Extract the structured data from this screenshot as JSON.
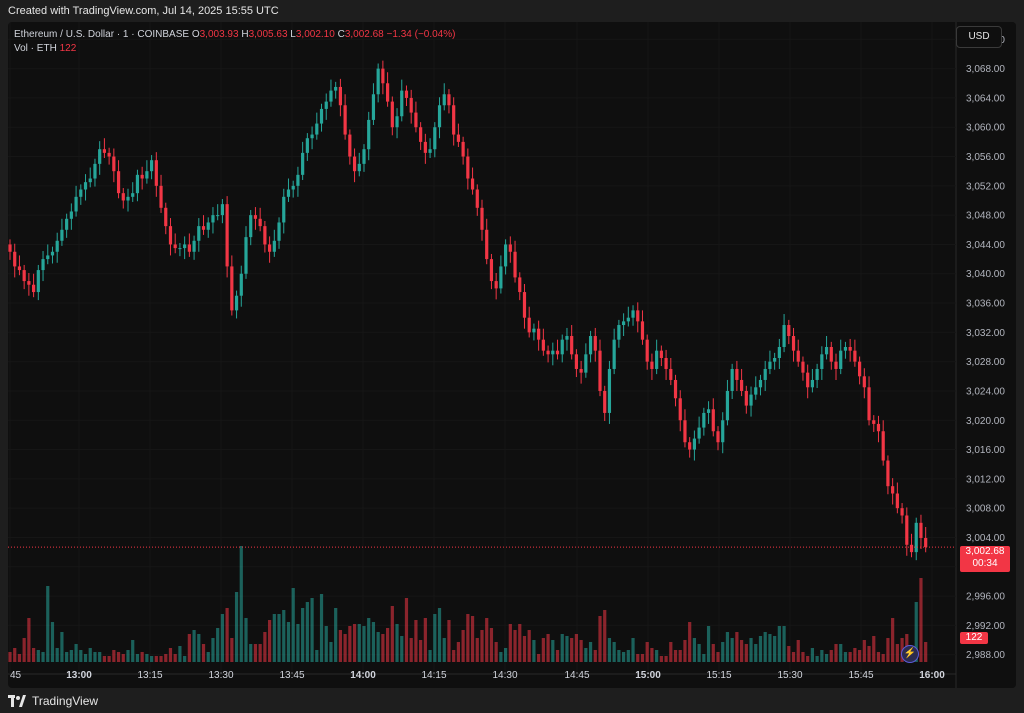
{
  "header": {
    "text": "Created with TradingView.com, Jul 14, 2025 15:55 UTC"
  },
  "legend": {
    "symbol": "Ethereum / U.S. Dollar · 1 · COINBASE",
    "o_label": "O",
    "o_value": "3,003.93",
    "h_label": "H",
    "h_value": "3,005.63",
    "l_label": "L",
    "l_value": "3,002.10",
    "c_label": "C",
    "c_value": "3,002.68",
    "change": "−1.34 (−0.04%)",
    "vol_label": "Vol · ETH",
    "vol_value": "122"
  },
  "currency_button": "USD",
  "last_price": {
    "value": "3,002.68",
    "countdown": "00:34"
  },
  "last_volume": "122",
  "footer": {
    "brand": "TradingView"
  },
  "colors": {
    "up": "#26a69a",
    "down": "#f23645",
    "background": "#0f0f0f"
  },
  "chart_data": {
    "type": "candlestick",
    "interval": "1 minute",
    "x_ticks": [
      "45",
      "13:00",
      "13:15",
      "13:30",
      "13:45",
      "14:00",
      "14:15",
      "14:30",
      "14:45",
      "15:00",
      "15:15",
      "15:30",
      "15:45",
      "16:00"
    ],
    "y_ticks": [
      "3,072.00",
      "3,068.00",
      "3,064.00",
      "3,060.00",
      "3,056.00",
      "3,052.00",
      "3,048.00",
      "3,044.00",
      "3,040.00",
      "3,036.00",
      "3,032.00",
      "3,028.00",
      "3,024.00",
      "3,020.00",
      "3,016.00",
      "3,012.00",
      "3,008.00",
      "3,004.00",
      "3,000.00",
      "2,996.00",
      "2,992.00",
      "2,988.00"
    ],
    "ylim": [
      2987,
      3073
    ],
    "close_path": [
      3043.0,
      3041.0,
      3040.5,
      3039.0,
      3038.5,
      3037.5,
      3040.5,
      3042.0,
      3042.5,
      3043.0,
      3044.5,
      3046.0,
      3047.5,
      3048.5,
      3050.5,
      3051.5,
      3052.5,
      3053.0,
      3055.0,
      3057.0,
      3056.5,
      3056.0,
      3054.0,
      3051.0,
      3050.0,
      3050.5,
      3051.0,
      3053.5,
      3053.0,
      3054.0,
      3055.5,
      3052.0,
      3049.0,
      3046.5,
      3044.0,
      3043.5,
      3043.5,
      3044.0,
      3043.0,
      3044.5,
      3046.5,
      3046.0,
      3047.0,
      3048.0,
      3048.0,
      3049.5,
      3041.0,
      3035.0,
      3037.0,
      3040.0,
      3045.0,
      3048.0,
      3047.5,
      3046.5,
      3044.0,
      3043.0,
      3044.5,
      3047.0,
      3050.5,
      3051.5,
      3052.0,
      3053.5,
      3056.5,
      3058.5,
      3059.0,
      3060.5,
      3062.5,
      3063.5,
      3065.0,
      3065.5,
      3063.0,
      3059.0,
      3056.0,
      3054.0,
      3055.0,
      3057.0,
      3061.0,
      3064.5,
      3068.0,
      3066.0,
      3063.5,
      3060.0,
      3061.5,
      3065.0,
      3064.0,
      3062.0,
      3060.0,
      3058.0,
      3056.5,
      3057.0,
      3060.0,
      3063.0,
      3064.5,
      3063.0,
      3059.0,
      3058.0,
      3056.0,
      3053.0,
      3051.5,
      3049.0,
      3046.0,
      3042.0,
      3039.0,
      3038.0,
      3041.0,
      3044.0,
      3043.0,
      3039.5,
      3037.5,
      3034.0,
      3032.0,
      3032.5,
      3031.0,
      3029.5,
      3029.0,
      3029.5,
      3029.0,
      3031.0,
      3031.5,
      3029.0,
      3027.0,
      3026.5,
      3029.0,
      3031.5,
      3029.5,
      3024.0,
      3021.0,
      3027.0,
      3031.0,
      3033.0,
      3033.5,
      3034.0,
      3035.0,
      3033.5,
      3031.0,
      3028.0,
      3027.0,
      3029.5,
      3028.5,
      3027.0,
      3025.5,
      3023.0,
      3020.0,
      3017.0,
      3016.0,
      3017.5,
      3019.0,
      3021.0,
      3021.5,
      3018.5,
      3017.0,
      3020.0,
      3024.0,
      3027.0,
      3025.5,
      3024.0,
      3022.0,
      3023.5,
      3024.5,
      3025.5,
      3027.0,
      3028.0,
      3028.5,
      3030.0,
      3033.0,
      3031.5,
      3029.5,
      3028.0,
      3026.5,
      3024.5,
      3025.5,
      3027.0,
      3029.0,
      3030.0,
      3028.0,
      3027.0,
      3029.5,
      3030.0,
      3029.5,
      3028.0,
      3026.0,
      3024.5,
      3020.0,
      3019.5,
      3018.5,
      3014.5,
      3011.0,
      3010.0,
      3008.0,
      3007.0,
      3003.0,
      3002.0,
      3006.0,
      3003.93,
      3002.68
    ],
    "volume": [
      0.05,
      0.07,
      0.04,
      0.12,
      0.22,
      0.07,
      0.06,
      0.05,
      0.38,
      0.2,
      0.07,
      0.15,
      0.05,
      0.06,
      0.09,
      0.06,
      0.04,
      0.07,
      0.05,
      0.05,
      0.03,
      0.03,
      0.06,
      0.05,
      0.04,
      0.06,
      0.11,
      0.04,
      0.05,
      0.04,
      0.03,
      0.03,
      0.03,
      0.04,
      0.07,
      0.04,
      0.08,
      0.03,
      0.14,
      0.16,
      0.14,
      0.09,
      0.05,
      0.12,
      0.17,
      0.24,
      0.27,
      0.12,
      0.35,
      0.58,
      0.22,
      0.09,
      0.09,
      0.09,
      0.15,
      0.21,
      0.24,
      0.24,
      0.26,
      0.2,
      0.37,
      0.19,
      0.27,
      0.3,
      0.32,
      0.06,
      0.34,
      0.18,
      0.1,
      0.27,
      0.16,
      0.14,
      0.18,
      0.19,
      0.19,
      0.18,
      0.22,
      0.2,
      0.15,
      0.14,
      0.17,
      0.28,
      0.19,
      0.13,
      0.32,
      0.12,
      0.21,
      0.11,
      0.22,
      0.06,
      0.24,
      0.27,
      0.12,
      0.21,
      0.06,
      0.1,
      0.16,
      0.24,
      0.23,
      0.12,
      0.16,
      0.22,
      0.17,
      0.1,
      0.05,
      0.07,
      0.19,
      0.16,
      0.19,
      0.13,
      0.16,
      0.11,
      0.04,
      0.12,
      0.14,
      0.11,
      0.06,
      0.14,
      0.13,
      0.12,
      0.14,
      0.11,
      0.07,
      0.1,
      0.06,
      0.23,
      0.26,
      0.12,
      0.1,
      0.06,
      0.05,
      0.06,
      0.12,
      0.04,
      0.04,
      0.1,
      0.07,
      0.06,
      0.03,
      0.03,
      0.1,
      0.06,
      0.06,
      0.11,
      0.2,
      0.12,
      0.09,
      0.04,
      0.18,
      0.09,
      0.05,
      0.1,
      0.15,
      0.12,
      0.15,
      0.11,
      0.09,
      0.12,
      0.09,
      0.13,
      0.15,
      0.14,
      0.13,
      0.18,
      0.18,
      0.08,
      0.05,
      0.11,
      0.05,
      0.03,
      0.07,
      0.03,
      0.06,
      0.04,
      0.06,
      0.09,
      0.09,
      0.05,
      0.05,
      0.07,
      0.06,
      0.11,
      0.08,
      0.13,
      0.05,
      0.04,
      0.12,
      0.22,
      0.09,
      0.12,
      0.14,
      0.08,
      0.3,
      0.42,
      0.1
    ]
  }
}
